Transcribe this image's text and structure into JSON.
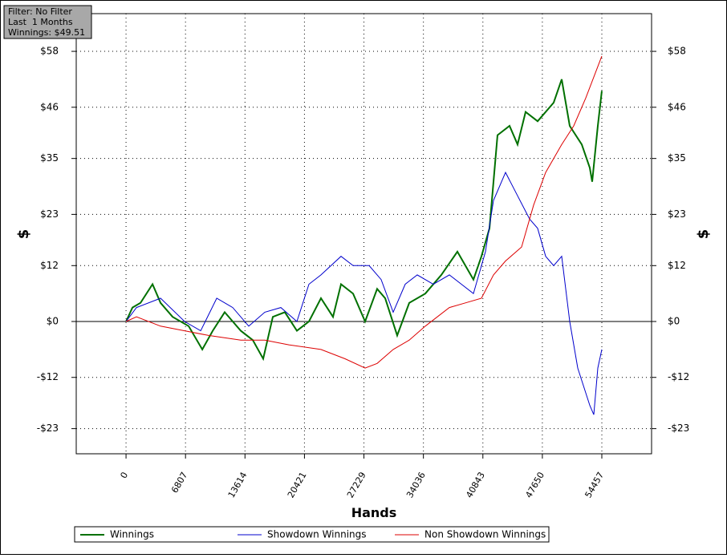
{
  "info": [
    "Filter: No Filter",
    "Last  1 Months",
    "Winnings: $49.51"
  ],
  "chart_data": {
    "type": "line",
    "x_label": "Hands",
    "y_label": "$",
    "xlim": [
      -5700,
      60150
    ],
    "ylim": [
      -28.4,
      66.1
    ],
    "y2lim": [
      -28.4,
      66.1
    ],
    "xticks": [
      0,
      6807,
      13614,
      20421,
      27229,
      34036,
      40843,
      47650,
      54457
    ],
    "yticks": [
      {
        "value": -23,
        "label": "-$23"
      },
      {
        "value": -12,
        "label": "-$12"
      },
      {
        "value": 0,
        "label": "$0"
      },
      {
        "value": 12,
        "label": "$12"
      },
      {
        "value": 23,
        "label": "$23"
      },
      {
        "value": 35,
        "label": "$35"
      },
      {
        "value": 46,
        "label": "$46"
      },
      {
        "value": 58,
        "label": "$58"
      }
    ],
    "grid": true,
    "legend": "bottom",
    "series": [
      {
        "name": "Winnings",
        "color": "#007000",
        "x": [
          0,
          735,
          1653,
          3030,
          3949,
          5326,
          7163,
          8724,
          9918,
          11295,
          13132,
          14509,
          15703,
          16805,
          18182,
          19560,
          20937,
          22315,
          23692,
          24610,
          25988,
          27365,
          28743,
          29661,
          31039,
          32416,
          34253,
          36089,
          37926,
          39762,
          40681,
          41599,
          42517,
          43895,
          44813,
          45731,
          47109,
          48945,
          49864,
          50782,
          52159,
          53077,
          53353,
          53996,
          54457
        ],
        "values": [
          0,
          3,
          4,
          8,
          4,
          1,
          -1,
          -6,
          -2,
          2,
          -2,
          -4,
          -8,
          1,
          2,
          -2,
          0,
          5,
          1,
          8,
          6,
          0,
          7,
          5,
          -3,
          4,
          6,
          10,
          15,
          9,
          14,
          20,
          40,
          42,
          38,
          45,
          43,
          47,
          52,
          42,
          38,
          33,
          30,
          42,
          49.51
        ]
      },
      {
        "name": "Showdown Winnings",
        "color": "#0000cc",
        "x": [
          0,
          1194,
          3949,
          6704,
          8540,
          10377,
          12213,
          14050,
          15887,
          17723,
          19560,
          20937,
          22315,
          24610,
          25988,
          27824,
          29202,
          30579,
          31957,
          33334,
          35171,
          37007,
          38385,
          39762,
          41140,
          42058,
          43436,
          44813,
          46190,
          47109,
          48027,
          48945,
          49864,
          50782,
          51700,
          53077,
          53537,
          53996,
          54457
        ],
        "values": [
          0,
          3,
          5,
          0,
          -2,
          5,
          3,
          -1,
          2,
          3,
          0,
          8,
          10,
          14,
          12,
          12,
          9,
          2,
          8,
          10,
          8,
          10,
          8,
          6,
          15,
          26,
          32,
          27,
          22,
          20,
          14,
          12,
          14,
          0,
          -10,
          -18,
          -20,
          -10,
          -6
        ]
      },
      {
        "name": "Non Showdown Winnings",
        "color": "#dd0000",
        "x": [
          0,
          1194,
          3949,
          6704,
          9458,
          13132,
          15887,
          18641,
          22315,
          25070,
          27365,
          28743,
          30579,
          32416,
          34253,
          37007,
          38844,
          40681,
          42058,
          43436,
          45273,
          46650,
          48027,
          49864,
          51241,
          52618,
          54457
        ],
        "values": [
          0,
          1,
          -1,
          -2,
          -3,
          -4,
          -4,
          -5,
          -6,
          -8,
          -10,
          -9,
          -6,
          -4,
          -1,
          3,
          4,
          5,
          10,
          13,
          16,
          25,
          32,
          38,
          42,
          48,
          57
        ]
      }
    ]
  }
}
